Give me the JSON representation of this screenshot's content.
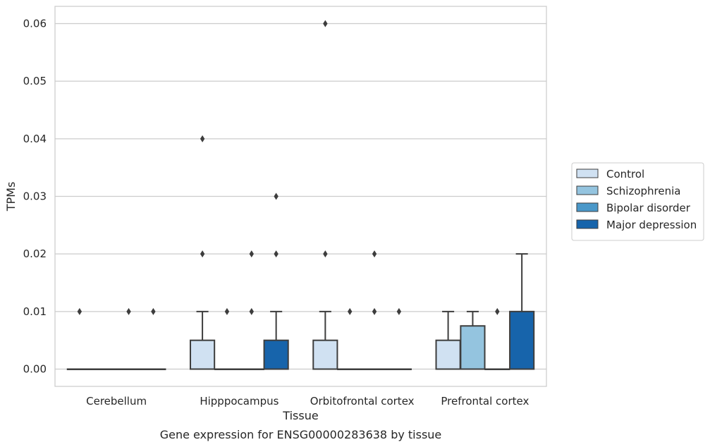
{
  "chart_data": {
    "type": "box",
    "xlabel": "Tissue",
    "ylabel": "TPMs",
    "caption": "Gene expression for ENSG00000283638 by tissue",
    "ylim": [
      -0.003,
      0.063
    ],
    "yticks": [
      0.0,
      0.01,
      0.02,
      0.03,
      0.04,
      0.05,
      0.06
    ],
    "ytick_labels": [
      "0.00",
      "0.01",
      "0.02",
      "0.03",
      "0.04",
      "0.05",
      "0.06"
    ],
    "grid": "horizontal",
    "legend_position": "right",
    "categories": [
      "Cerebellum",
      "Hipppocampus",
      "Orbitofrontal cortex",
      "Prefrontal cortex"
    ],
    "series": [
      {
        "name": "Control",
        "color": "#d0e1f2",
        "boxes": [
          {
            "category": "Cerebellum",
            "q1": 0.0,
            "median": 0.0,
            "q3": 0.0,
            "whislo": 0.0,
            "whishi": 0.0,
            "fliers": [
              0.01
            ]
          },
          {
            "category": "Hipppocampus",
            "q1": 0.0,
            "median": 0.0,
            "q3": 0.005,
            "whislo": 0.0,
            "whishi": 0.01,
            "fliers": [
              0.02,
              0.04
            ]
          },
          {
            "category": "Orbitofrontal cortex",
            "q1": 0.0,
            "median": 0.0,
            "q3": 0.005,
            "whislo": 0.0,
            "whishi": 0.01,
            "fliers": [
              0.02,
              0.06
            ]
          },
          {
            "category": "Prefrontal cortex",
            "q1": 0.0,
            "median": 0.0,
            "q3": 0.005,
            "whislo": 0.0,
            "whishi": 0.01,
            "fliers": []
          }
        ]
      },
      {
        "name": "Schizophrenia",
        "color": "#94c4df",
        "boxes": [
          {
            "category": "Cerebellum",
            "q1": 0.0,
            "median": 0.0,
            "q3": 0.0,
            "whislo": 0.0,
            "whishi": 0.0,
            "fliers": []
          },
          {
            "category": "Hipppocampus",
            "q1": 0.0,
            "median": 0.0,
            "q3": 0.0,
            "whislo": 0.0,
            "whishi": 0.0,
            "fliers": [
              0.01
            ]
          },
          {
            "category": "Orbitofrontal cortex",
            "q1": 0.0,
            "median": 0.0,
            "q3": 0.0,
            "whislo": 0.0,
            "whishi": 0.0,
            "fliers": [
              0.01
            ]
          },
          {
            "category": "Prefrontal cortex",
            "q1": 0.0,
            "median": 0.0,
            "q3": 0.0075,
            "whislo": 0.0,
            "whishi": 0.01,
            "fliers": []
          }
        ]
      },
      {
        "name": "Bipolar disorder",
        "color": "#4a98c9",
        "boxes": [
          {
            "category": "Cerebellum",
            "q1": 0.0,
            "median": 0.0,
            "q3": 0.0,
            "whislo": 0.0,
            "whishi": 0.0,
            "fliers": [
              0.01
            ]
          },
          {
            "category": "Hipppocampus",
            "q1": 0.0,
            "median": 0.0,
            "q3": 0.0,
            "whislo": 0.0,
            "whishi": 0.0,
            "fliers": [
              0.01,
              0.02
            ]
          },
          {
            "category": "Orbitofrontal cortex",
            "q1": 0.0,
            "median": 0.0,
            "q3": 0.0,
            "whislo": 0.0,
            "whishi": 0.0,
            "fliers": [
              0.01,
              0.02
            ]
          },
          {
            "category": "Prefrontal cortex",
            "q1": 0.0,
            "median": 0.0,
            "q3": 0.0,
            "whislo": 0.0,
            "whishi": 0.0,
            "fliers": [
              0.01
            ]
          }
        ]
      },
      {
        "name": "Major depression",
        "color": "#1764ab",
        "boxes": [
          {
            "category": "Cerebellum",
            "q1": 0.0,
            "median": 0.0,
            "q3": 0.0,
            "whislo": 0.0,
            "whishi": 0.0,
            "fliers": [
              0.01
            ]
          },
          {
            "category": "Hipppocampus",
            "q1": 0.0,
            "median": 0.0,
            "q3": 0.005,
            "whislo": 0.0,
            "whishi": 0.01,
            "fliers": [
              0.02,
              0.03
            ]
          },
          {
            "category": "Orbitofrontal cortex",
            "q1": 0.0,
            "median": 0.0,
            "q3": 0.0,
            "whislo": 0.0,
            "whishi": 0.0,
            "fliers": [
              0.01
            ]
          },
          {
            "category": "Prefrontal cortex",
            "q1": 0.0,
            "median": 0.0,
            "q3": 0.01,
            "whislo": 0.0,
            "whishi": 0.02,
            "fliers": []
          }
        ]
      }
    ]
  }
}
